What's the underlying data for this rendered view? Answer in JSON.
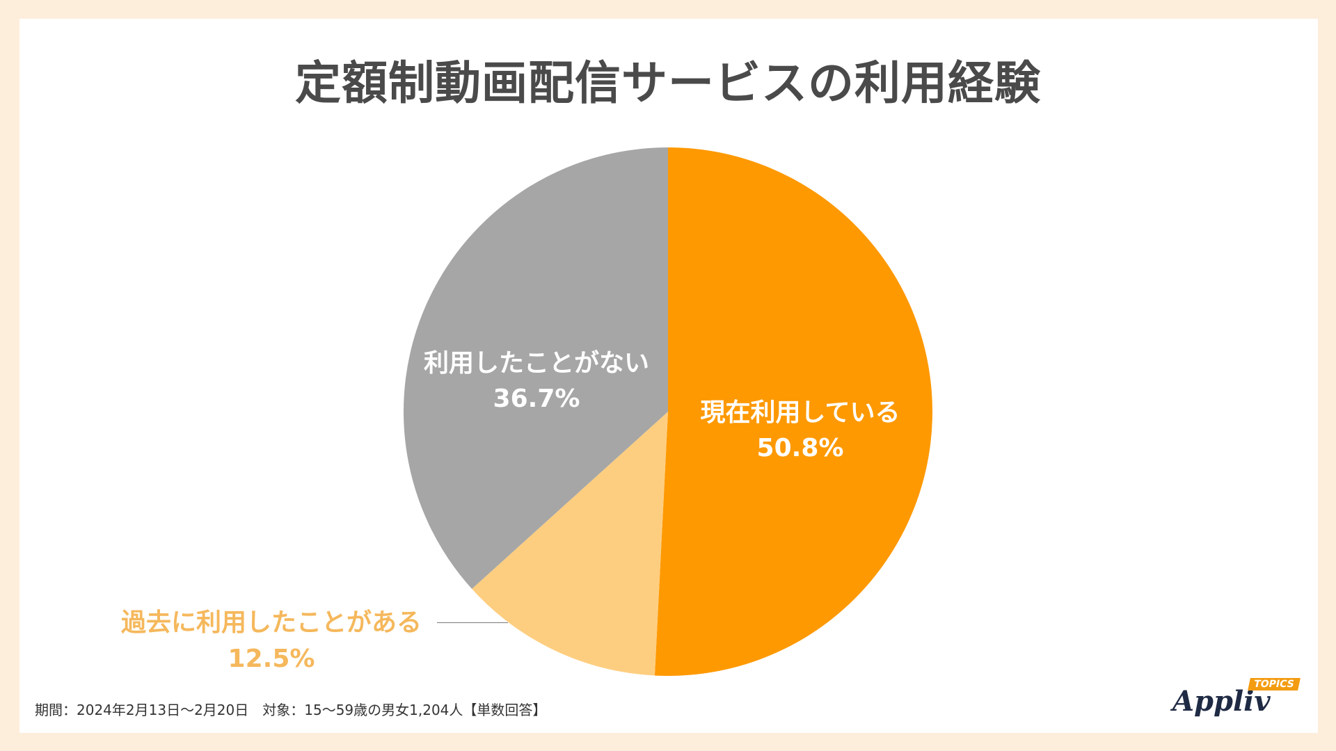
{
  "title": "定額制動画配信サービスの利用経験",
  "chart_data": {
    "type": "pie",
    "title": "定額制動画配信サービスの利用経験",
    "start": "12 o'clock, clockwise",
    "slices": [
      {
        "label": "現在利用している",
        "value": 50.8,
        "display": "50.8%",
        "color": "#fe9902",
        "label_stroke": "#fe9902"
      },
      {
        "label": "過去に利用したことがある",
        "value": 12.5,
        "display": "12.5%",
        "color": "#fece80",
        "label_stroke": "#fece80"
      },
      {
        "label": "利用したことがない",
        "value": 36.7,
        "display": "36.7%",
        "color": "#a6a6a6",
        "label_stroke": "#a6a6a6"
      }
    ]
  },
  "footnote": "期間：2024年2月13日〜2月20日　対象：15〜59歳の男女1,204人【単数回答】",
  "logo": {
    "word": "Appliv",
    "tag": "TOPICS"
  }
}
